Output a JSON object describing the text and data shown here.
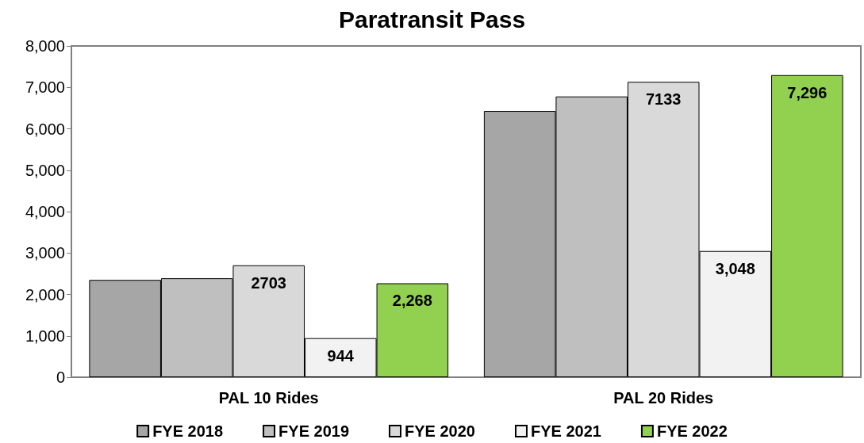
{
  "chart_data": {
    "type": "bar",
    "title": "Paratransit Pass",
    "categories": [
      "PAL 10 Rides",
      "PAL 20 Rides"
    ],
    "series": [
      {
        "name": "FYE 2018",
        "color": "#a6a6a6",
        "values": [
          2350,
          6430
        ],
        "value_labels": [
          null,
          null
        ]
      },
      {
        "name": "FYE 2019",
        "color": "#bfbfbf",
        "values": [
          2390,
          6780
        ],
        "value_labels": [
          null,
          null
        ]
      },
      {
        "name": "FYE 2020",
        "color": "#d9d9d9",
        "values": [
          2703,
          7133
        ],
        "value_labels": [
          "2703",
          "7133"
        ]
      },
      {
        "name": "FYE 2021",
        "color": "#f2f2f2",
        "values": [
          944,
          3048
        ],
        "value_labels": [
          "944",
          "3,048"
        ]
      },
      {
        "name": "FYE 2022",
        "color": "#92d050",
        "values": [
          2268,
          7296
        ],
        "value_labels": [
          "2,268",
          "7,296"
        ]
      }
    ],
    "ylim": [
      0,
      8000
    ],
    "yticks": [
      0,
      {
        "value": 1000,
        "label": "1,000"
      },
      {
        "value": 2000,
        "label": "2,000"
      },
      {
        "value": 3000,
        "label": "3,000"
      },
      {
        "value": 4000,
        "label": "4,000"
      },
      {
        "value": 5000,
        "label": "5,000"
      },
      {
        "value": 6000,
        "label": "6,000"
      },
      {
        "value": 7000,
        "label": "7,000"
      },
      {
        "value": 8000,
        "label": "8,000"
      }
    ],
    "grid": false,
    "legend": "bottom"
  }
}
